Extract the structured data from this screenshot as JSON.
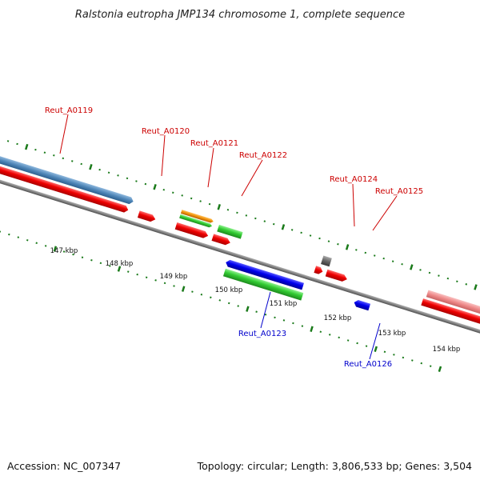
{
  "title": "Ralstonia eutropha JMP134 chromosome 1, complete sequence",
  "footer": {
    "accession": "Accession: NC_007347",
    "summary": "Topology: circular; Length: 3,806,533 bp; Genes: 3,504"
  },
  "colors": {
    "backbone": "#808080",
    "cds_red": "#ee0000",
    "cds_green": "#33cc33",
    "cds_blue": "#0000ee",
    "cds_orange": "#f0900a",
    "gene_steelblue": "#4f86b8",
    "gene_pink": "#ee8888",
    "gray_feature": "#666666",
    "tick_green": "#1a7a1a",
    "label_red": "#cc0000",
    "label_blue": "#0000cc"
  },
  "scale_labels": [
    "147 kbp",
    "148 kbp",
    "149 kbp",
    "150 kbp",
    "151 kbp",
    "152 kbp",
    "153 kbp",
    "154 kbp"
  ],
  "gene_labels": {
    "reut_a0119": "Reut_A0119",
    "reut_a0120": "Reut_A0120",
    "reut_a0121": "Reut_A0121",
    "reut_a0122": "Reut_A0122",
    "reut_a0124": "Reut_A0124",
    "reut_a0125": "Reut_A0125",
    "reut_a0123": "Reut_A0123",
    "reut_a0126": "Reut_A0126"
  }
}
